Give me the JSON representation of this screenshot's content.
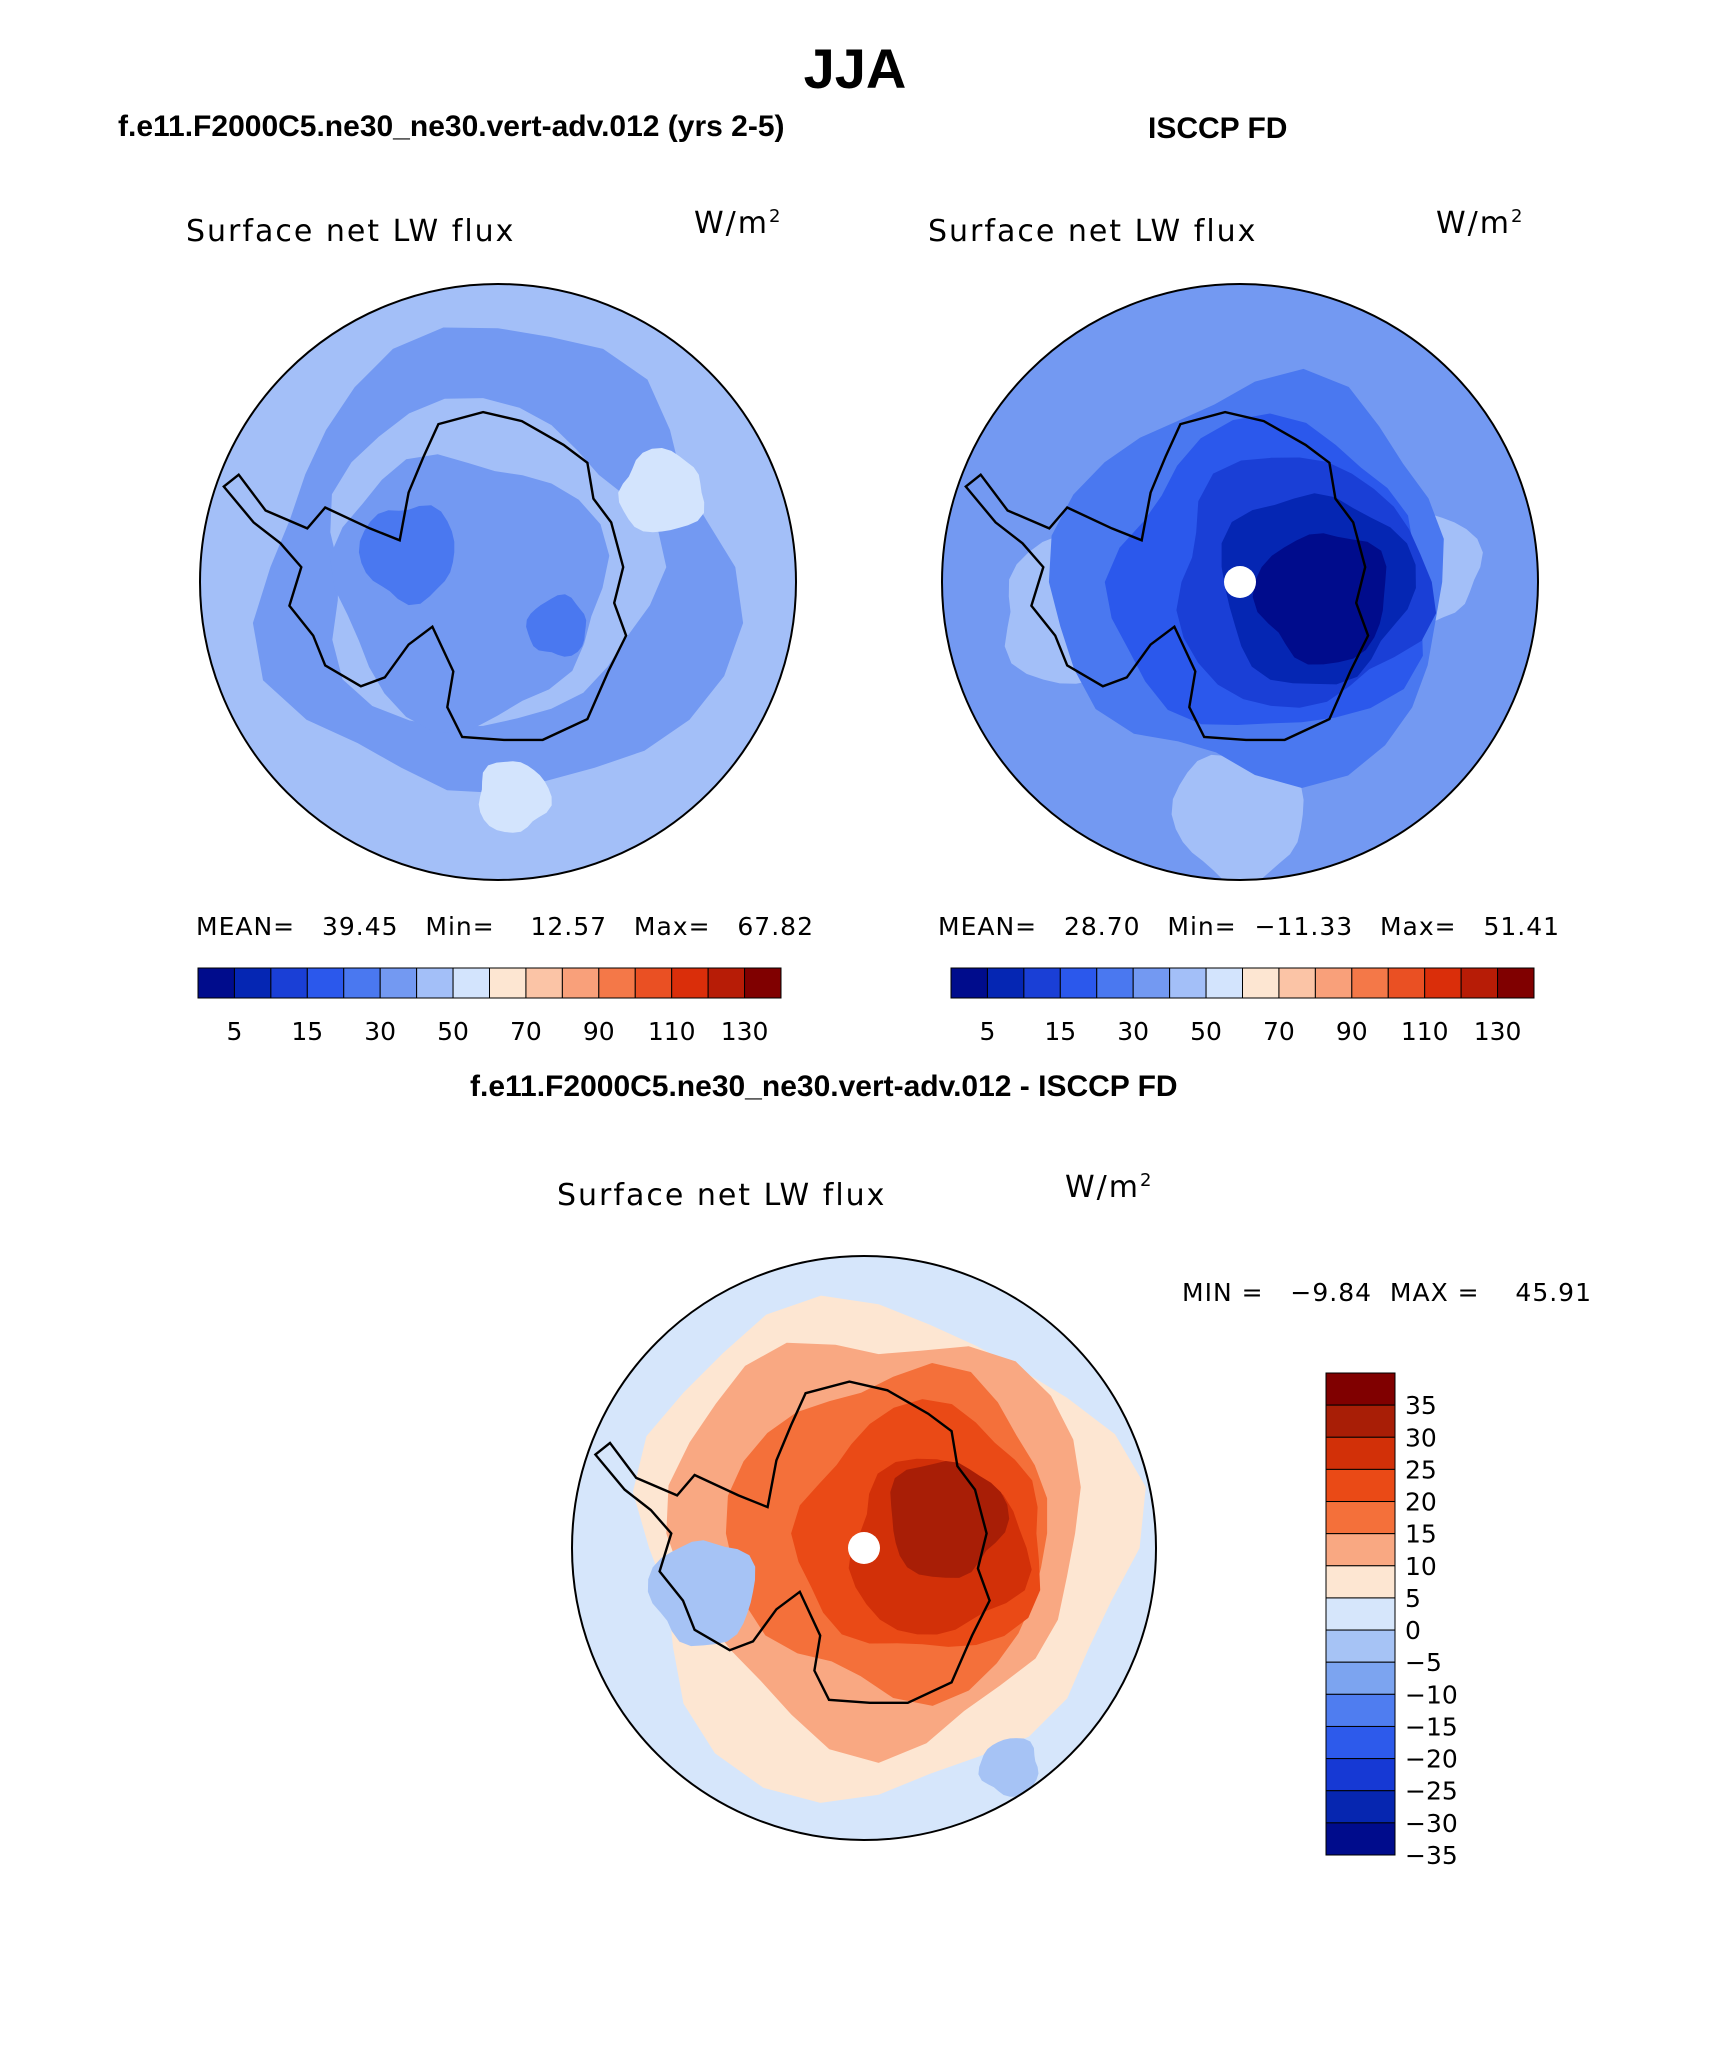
{
  "title": "JJA",
  "panels": [
    {
      "case_title": "f.e11.F2000C5.ne30_ne30.vert-adv.012 (yrs 2-5)",
      "variable": "Surface net LW flux",
      "units_base": "W/m",
      "units_exp": "2",
      "stats": {
        "mean_label": "MEAN=",
        "mean": "39.45",
        "min_label": "Min=",
        "min": "12.57",
        "max_label": "Max=",
        "max": "67.82"
      }
    },
    {
      "case_title": "ISCCP FD",
      "variable": "Surface net LW flux",
      "units_base": "W/m",
      "units_exp": "2",
      "stats": {
        "mean_label": "MEAN=",
        "mean": "28.70",
        "min_label": "Min=",
        "min": "−11.33",
        "max_label": "Max=",
        "max": "51.41"
      }
    },
    {
      "case_title": "f.e11.F2000C5.ne30_ne30.vert-adv.012 - ISCCP FD",
      "variable": "Surface net LW flux",
      "units_base": "W/m",
      "units_exp": "2",
      "stats": {
        "min_label": "MIN =",
        "min": "−9.84",
        "max_label": "MAX =",
        "max": "45.91"
      }
    }
  ],
  "chart_data": [
    {
      "type": "heatmap",
      "projection": "south polar stereographic",
      "title": "f.e11.F2000C5.ne30_ne30.vert-adv.012 (yrs 2-5)",
      "variable": "Surface net LW flux",
      "units": "W/m2",
      "mean": 39.45,
      "min": 12.57,
      "max": 67.82,
      "colorbar_orientation": "horizontal",
      "colorbar_tick_labels": [
        "5",
        "15",
        "30",
        "50",
        "70",
        "90",
        "110",
        "130"
      ],
      "colorbar_colors": [
        "#000c8c",
        "#0526b3",
        "#1a3fd6",
        "#2b58ec",
        "#4a78f0",
        "#7399f2",
        "#a3bff8",
        "#d3e4fd",
        "#fde6d2",
        "#fbc4a6",
        "#f9a07a",
        "#f47848",
        "#ea5023",
        "#da2e0a",
        "#b71c06",
        "#800000"
      ]
    },
    {
      "type": "heatmap",
      "projection": "south polar stereographic",
      "title": "ISCCP FD",
      "variable": "Surface net LW flux",
      "units": "W/m2",
      "mean": 28.7,
      "min": -11.33,
      "max": 51.41,
      "colorbar_orientation": "horizontal",
      "colorbar_tick_labels": [
        "5",
        "15",
        "30",
        "50",
        "70",
        "90",
        "110",
        "130"
      ],
      "colorbar_colors": [
        "#000c8c",
        "#0526b3",
        "#1a3fd6",
        "#2b58ec",
        "#4a78f0",
        "#7399f2",
        "#a3bff8",
        "#d3e4fd",
        "#fde6d2",
        "#fbc4a6",
        "#f9a07a",
        "#f47848",
        "#ea5023",
        "#da2e0a",
        "#b71c06",
        "#800000"
      ]
    },
    {
      "type": "heatmap",
      "projection": "south polar stereographic",
      "title": "f.e11.F2000C5.ne30_ne30.vert-adv.012 - ISCCP FD",
      "variable": "Surface net LW flux",
      "units": "W/m2",
      "min": -9.84,
      "max": 45.91,
      "colorbar_orientation": "vertical",
      "colorbar_tick_labels": [
        "35",
        "30",
        "25",
        "20",
        "15",
        "10",
        "5",
        "0",
        "−5",
        "−10",
        "−15",
        "−20",
        "−25",
        "−30",
        "−35"
      ],
      "colorbar_colors": [
        "#800000",
        "#a81e06",
        "#d23008",
        "#ea4a16",
        "#f4703a",
        "#f9a882",
        "#fde6d2",
        "#d6e6fb",
        "#a6c3f5",
        "#7ca4f0",
        "#4f7df0",
        "#2d5aeb",
        "#1639d4",
        "#0626b0",
        "#000c8c"
      ]
    }
  ]
}
